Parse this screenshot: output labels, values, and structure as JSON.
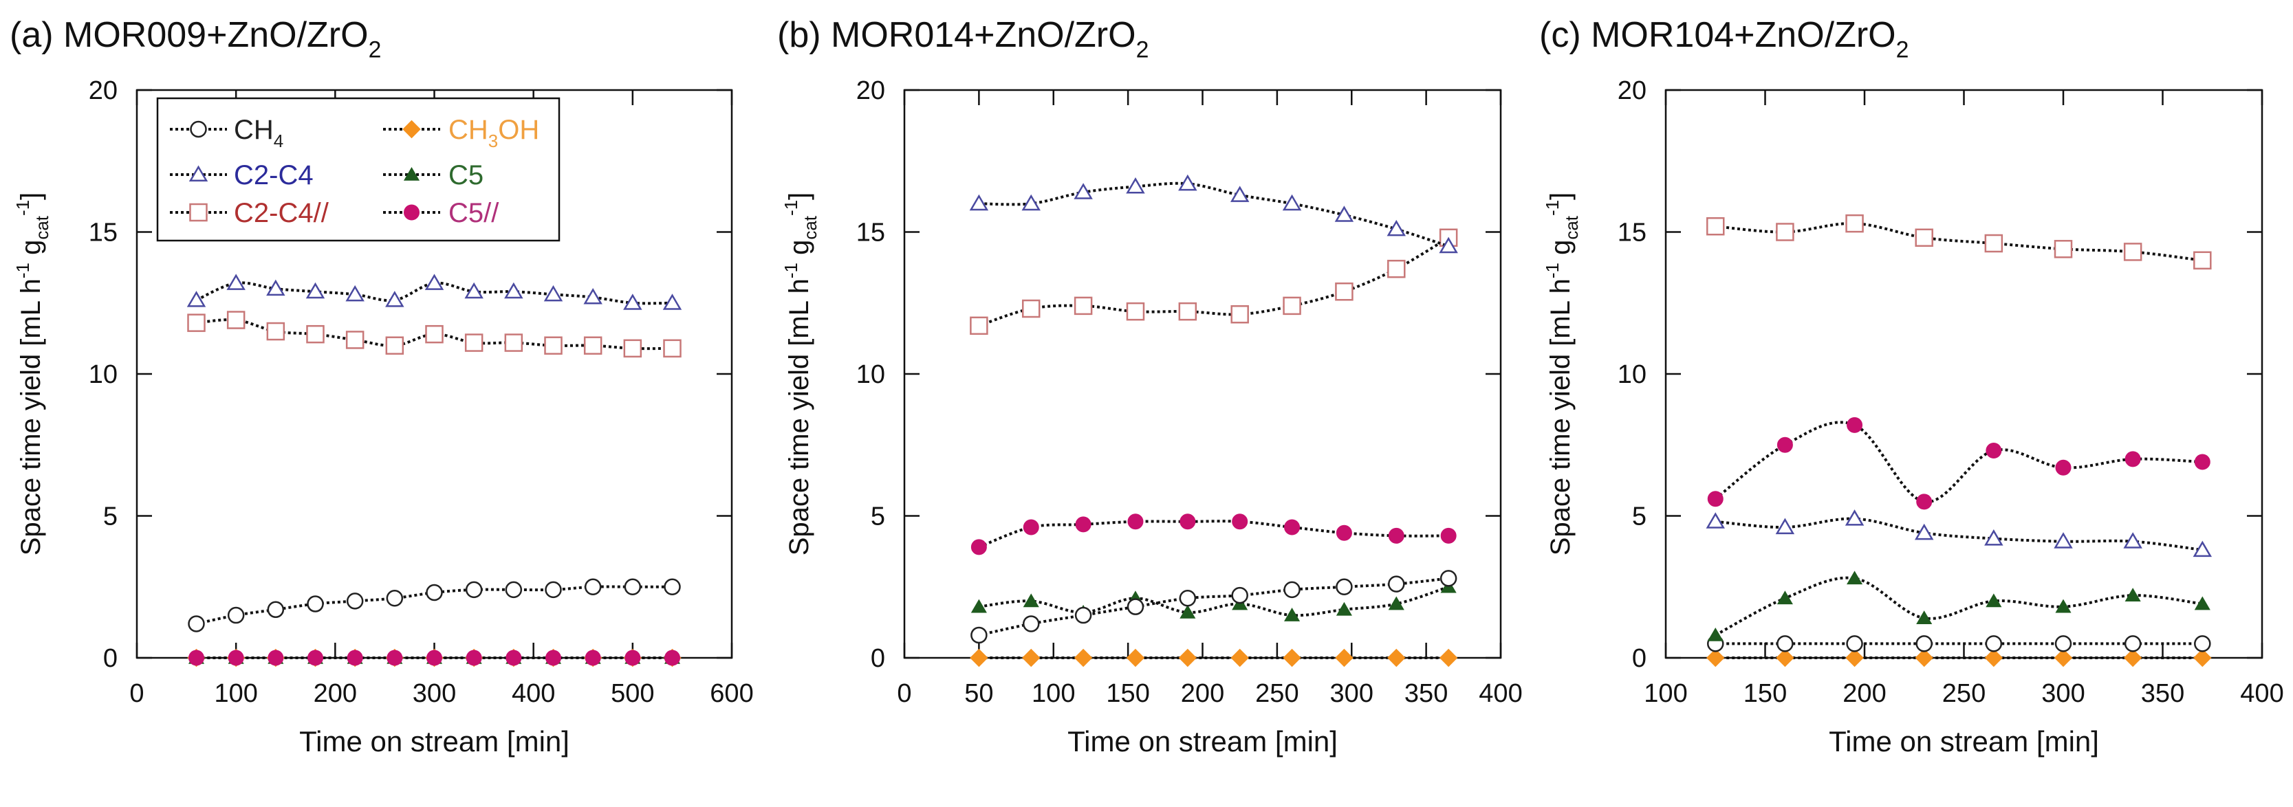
{
  "chart_data": [
    {
      "type": "line",
      "title_parts": [
        {
          "text": "(a) MOR009+ZnO/ZrO",
          "shift": ""
        },
        {
          "text": "2",
          "shift": "sub"
        }
      ],
      "xlabel": "Time on stream [min]",
      "ylabel_parts": [
        {
          "text": "Space time yield [mL h",
          "shift": ""
        },
        {
          "text": "-1",
          "shift": "sup"
        },
        {
          "text": " g",
          "shift": ""
        },
        {
          "text": "cat",
          "shift": "sub"
        },
        {
          "text": "-1",
          "shift": "sup"
        },
        {
          "text": "]",
          "shift": ""
        }
      ],
      "xlim": [
        0,
        600
      ],
      "ylim": [
        0,
        20
      ],
      "xticks": [
        "0",
        "100",
        "200",
        "300",
        "400",
        "500",
        "600"
      ],
      "yticks": [
        "0",
        "5",
        "10",
        "15",
        "20"
      ],
      "grid": false,
      "legend_position": "top-left",
      "x": [
        60,
        100,
        140,
        180,
        220,
        260,
        300,
        340,
        380,
        420,
        460,
        500,
        540
      ],
      "series": [
        {
          "key": "ch3oh",
          "values": [
            0,
            0,
            0,
            0,
            0,
            0,
            0,
            0,
            0,
            0,
            0,
            0,
            0
          ]
        },
        {
          "key": "c5",
          "values": [
            0,
            0,
            0,
            0,
            0,
            0,
            0,
            0,
            0,
            0,
            0,
            0,
            0
          ]
        },
        {
          "key": "c5p",
          "values": [
            0,
            0,
            0,
            0,
            0,
            0,
            0,
            0,
            0,
            0,
            0,
            0,
            0
          ]
        },
        {
          "key": "ch4",
          "values": [
            1.2,
            1.5,
            1.7,
            1.9,
            2.0,
            2.1,
            2.3,
            2.4,
            2.4,
            2.4,
            2.5,
            2.5,
            2.5
          ]
        },
        {
          "key": "c2c4p",
          "values": [
            11.8,
            11.9,
            11.5,
            11.4,
            11.2,
            11.0,
            11.4,
            11.1,
            11.1,
            11.0,
            11.0,
            10.9,
            10.9
          ]
        },
        {
          "key": "c2c4",
          "values": [
            12.6,
            13.2,
            13.0,
            12.9,
            12.8,
            12.6,
            13.2,
            12.9,
            12.9,
            12.8,
            12.7,
            12.5,
            12.5
          ]
        }
      ]
    },
    {
      "type": "line",
      "title_parts": [
        {
          "text": "(b) MOR014+ZnO/ZrO",
          "shift": ""
        },
        {
          "text": "2",
          "shift": "sub"
        }
      ],
      "xlabel": "Time on stream [min]",
      "ylabel_parts": [
        {
          "text": "Space time yield [mL h",
          "shift": ""
        },
        {
          "text": "-1",
          "shift": "sup"
        },
        {
          "text": " g",
          "shift": ""
        },
        {
          "text": "cat",
          "shift": "sub"
        },
        {
          "text": "-1",
          "shift": "sup"
        },
        {
          "text": "]",
          "shift": ""
        }
      ],
      "xlim": [
        0,
        400
      ],
      "ylim": [
        0,
        20
      ],
      "xticks": [
        "0",
        "50",
        "100",
        "150",
        "200",
        "250",
        "300",
        "350",
        "400"
      ],
      "yticks": [
        "0",
        "5",
        "10",
        "15",
        "20"
      ],
      "grid": false,
      "x": [
        50,
        85,
        120,
        155,
        190,
        225,
        260,
        295,
        330,
        365
      ],
      "series": [
        {
          "key": "ch3oh",
          "values": [
            0,
            0,
            0,
            0,
            0,
            0,
            0,
            0,
            0,
            0
          ]
        },
        {
          "key": "c5",
          "values": [
            1.8,
            2.0,
            1.6,
            2.1,
            1.6,
            1.9,
            1.5,
            1.7,
            1.9,
            2.5
          ]
        },
        {
          "key": "ch4",
          "values": [
            0.8,
            1.2,
            1.5,
            1.8,
            2.1,
            2.2,
            2.4,
            2.5,
            2.6,
            2.8
          ]
        },
        {
          "key": "c5p",
          "values": [
            3.9,
            4.6,
            4.7,
            4.8,
            4.8,
            4.8,
            4.6,
            4.4,
            4.3,
            4.3
          ]
        },
        {
          "key": "c2c4p",
          "values": [
            11.7,
            12.3,
            12.4,
            12.2,
            12.2,
            12.1,
            12.4,
            12.9,
            13.7,
            14.8
          ]
        },
        {
          "key": "c2c4",
          "values": [
            16.0,
            16.0,
            16.4,
            16.6,
            16.7,
            16.3,
            16.0,
            15.6,
            15.1,
            14.5
          ]
        }
      ]
    },
    {
      "type": "line",
      "title_parts": [
        {
          "text": "(c) MOR104+ZnO/ZrO",
          "shift": ""
        },
        {
          "text": "2",
          "shift": "sub"
        }
      ],
      "xlabel": "Time on stream [min]",
      "ylabel_parts": [
        {
          "text": "Space time yield [mL h",
          "shift": ""
        },
        {
          "text": "-1",
          "shift": "sup"
        },
        {
          "text": " g",
          "shift": ""
        },
        {
          "text": "cat",
          "shift": "sub"
        },
        {
          "text": "-1",
          "shift": "sup"
        },
        {
          "text": "]",
          "shift": ""
        }
      ],
      "xlim": [
        100,
        400
      ],
      "ylim": [
        0,
        20
      ],
      "xticks": [
        "100",
        "150",
        "200",
        "250",
        "300",
        "350",
        "400"
      ],
      "yticks": [
        "0",
        "5",
        "10",
        "15",
        "20"
      ],
      "grid": false,
      "x": [
        125,
        160,
        195,
        230,
        265,
        300,
        335,
        370
      ],
      "series": [
        {
          "key": "ch3oh",
          "values": [
            0,
            0,
            0,
            0,
            0,
            0,
            0,
            0
          ]
        },
        {
          "key": "ch4",
          "values": [
            0.5,
            0.5,
            0.5,
            0.5,
            0.5,
            0.5,
            0.5,
            0.5
          ]
        },
        {
          "key": "c5",
          "values": [
            0.8,
            2.1,
            2.8,
            1.4,
            2.0,
            1.8,
            2.2,
            1.9
          ]
        },
        {
          "key": "c2c4",
          "values": [
            4.8,
            4.6,
            4.9,
            4.4,
            4.2,
            4.1,
            4.1,
            3.8
          ]
        },
        {
          "key": "c5p",
          "values": [
            5.6,
            7.5,
            8.2,
            5.5,
            7.3,
            6.7,
            7.0,
            6.9
          ]
        },
        {
          "key": "c2c4p",
          "values": [
            15.2,
            15.0,
            15.3,
            14.8,
            14.6,
            14.4,
            14.3,
            14.0
          ]
        }
      ]
    }
  ],
  "legend": [
    {
      "key": "ch4",
      "parts": [
        {
          "text": "CH",
          "shift": ""
        },
        {
          "text": "4",
          "shift": "sub"
        }
      ],
      "marker": "circle-open",
      "color": "#222222",
      "text_color": "#222222"
    },
    {
      "key": "ch3oh",
      "parts": [
        {
          "text": "CH",
          "shift": ""
        },
        {
          "text": "3",
          "shift": "sub"
        },
        {
          "text": "OH",
          "shift": ""
        }
      ],
      "marker": "diamond-filled",
      "color": "#f5921e",
      "text_color": "#f0a040"
    },
    {
      "key": "c2c4",
      "parts": [
        {
          "text": "C2-C4",
          "shift": ""
        }
      ],
      "marker": "triangle-open",
      "color": "#4a4aa0",
      "text_color": "#2b2b9b"
    },
    {
      "key": "c5",
      "parts": [
        {
          "text": "C5",
          "shift": ""
        }
      ],
      "marker": "triangle-filled",
      "color": "#1e5a1e",
      "text_color": "#2e6a2e"
    },
    {
      "key": "c2c4p",
      "parts": [
        {
          "text": "C2-C4//",
          "shift": ""
        }
      ],
      "marker": "square-open",
      "color": "#c87878",
      "text_color": "#b03030"
    },
    {
      "key": "c5p",
      "parts": [
        {
          "text": "C5//",
          "shift": ""
        }
      ],
      "marker": "circle-filled",
      "color": "#c8106e",
      "text_color": "#b0307a"
    }
  ]
}
